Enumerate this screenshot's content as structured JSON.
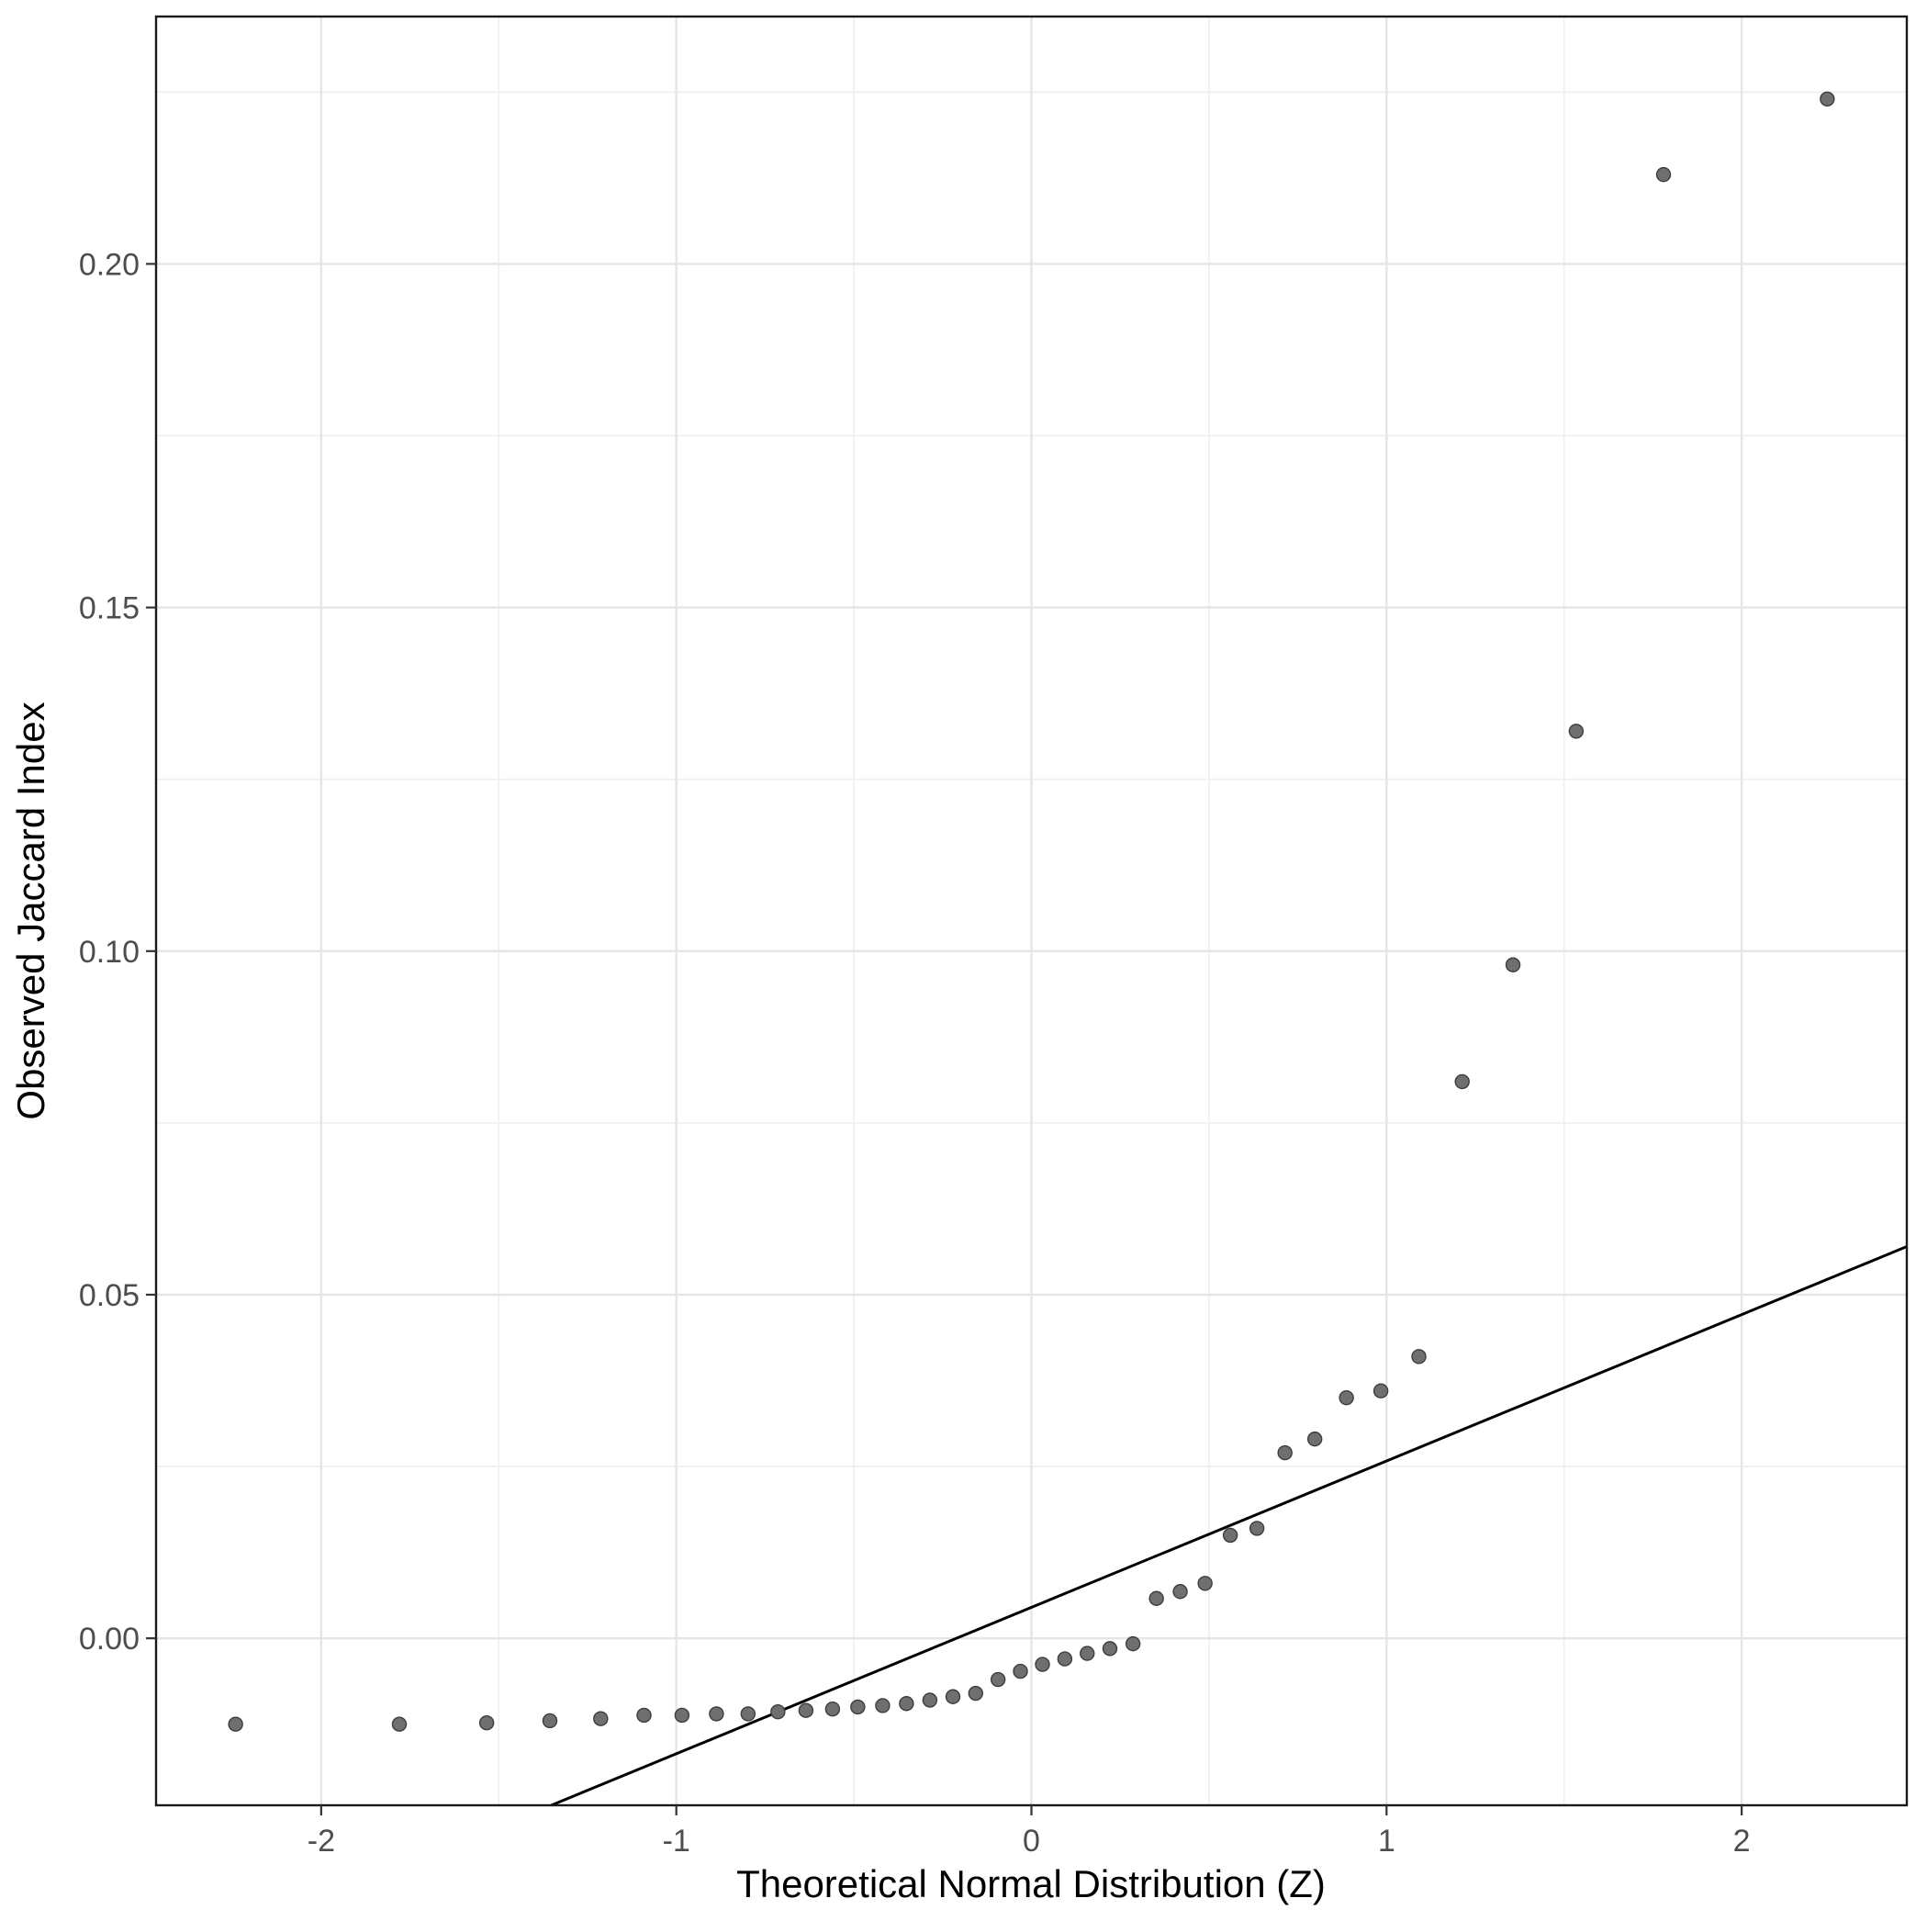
{
  "figure": {
    "xlabel": "Theoretical Normal Distribution (Z)",
    "ylabel": "Observed Jaccard Index"
  },
  "chart_data": {
    "type": "scatter",
    "title": "",
    "xlabel": "Theoretical Normal Distribution (Z)",
    "ylabel": "Observed Jaccard Index",
    "xlim": [
      -2.465,
      2.465
    ],
    "ylim": [
      -0.0243,
      0.236
    ],
    "grid": true,
    "legend": false,
    "x_ticks": [
      -2,
      -1,
      0,
      1,
      2
    ],
    "x_tick_labels": [
      "-2",
      "-1",
      "0",
      "1",
      "2"
    ],
    "y_ticks": [
      0.0,
      0.05,
      0.1,
      0.15,
      0.2
    ],
    "y_tick_labels": [
      "0.00",
      "0.05",
      "0.10",
      "0.15",
      "0.20"
    ],
    "x_minor_ticks": [
      -1.5,
      -0.5,
      0.5,
      1.5
    ],
    "y_minor_ticks": [
      0.025,
      0.075,
      0.125,
      0.175,
      0.225
    ],
    "reference_line": {
      "slope": 0.0213,
      "intercept": 0.0045
    },
    "points": [
      [
        -2.241,
        -0.0125
      ],
      [
        -1.78,
        -0.0125
      ],
      [
        -1.534,
        -0.0123
      ],
      [
        -1.356,
        -0.012
      ],
      [
        -1.213,
        -0.0117
      ],
      [
        -1.091,
        -0.0112
      ],
      [
        -0.984,
        -0.0112
      ],
      [
        -0.887,
        -0.011
      ],
      [
        -0.798,
        -0.011
      ],
      [
        -0.714,
        -0.0107
      ],
      [
        -0.635,
        -0.0105
      ],
      [
        -0.56,
        -0.0103
      ],
      [
        -0.489,
        -0.01
      ],
      [
        -0.419,
        -0.0098
      ],
      [
        -0.352,
        -0.0095
      ],
      [
        -0.286,
        -0.009
      ],
      [
        -0.221,
        -0.0085
      ],
      [
        -0.157,
        -0.008
      ],
      [
        -0.094,
        -0.006
      ],
      [
        -0.031,
        -0.0048
      ],
      [
        0.031,
        -0.0038
      ],
      [
        0.094,
        -0.003
      ],
      [
        0.157,
        -0.0022
      ],
      [
        0.221,
        -0.0015
      ],
      [
        0.286,
        -0.0008
      ],
      [
        0.352,
        0.0058
      ],
      [
        0.419,
        0.0068
      ],
      [
        0.489,
        0.008
      ],
      [
        0.56,
        0.015
      ],
      [
        0.635,
        0.016
      ],
      [
        0.714,
        0.027
      ],
      [
        0.798,
        0.029
      ],
      [
        0.887,
        0.035
      ],
      [
        0.984,
        0.036
      ],
      [
        1.091,
        0.041
      ],
      [
        1.213,
        0.081
      ],
      [
        1.356,
        0.098
      ],
      [
        1.534,
        0.132
      ],
      [
        1.78,
        0.213
      ],
      [
        2.241,
        0.224
      ]
    ],
    "colors": {
      "panel_bg": "#ffffff",
      "panel_border": "#1a1a1a",
      "grid_major": "#e5e5e5",
      "grid_minor": "#f0f0f0",
      "point_fill": "#6f6f6f",
      "point_stroke": "#3d3d3d",
      "line": "#000000",
      "tick_mark": "#333333"
    }
  }
}
